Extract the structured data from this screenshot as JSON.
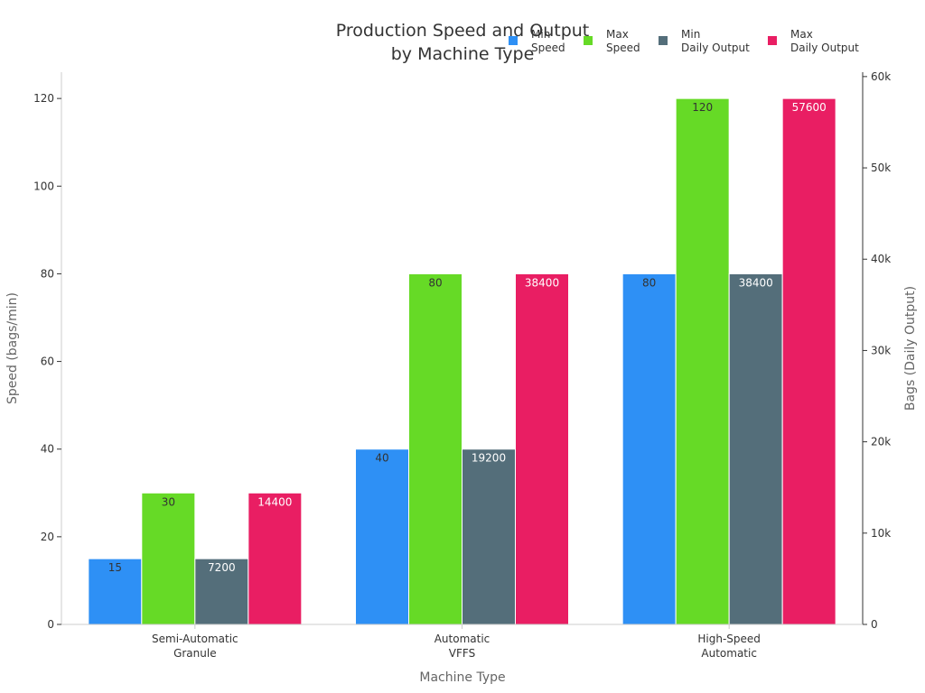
{
  "chart_data": {
    "type": "bar",
    "title": [
      "Production Speed and Output",
      "by Machine Type"
    ],
    "xlabel": "Machine Type",
    "ylabel_left": "Speed (bags/min)",
    "ylabel_right": "Bags (Daily Output)",
    "categories": [
      [
        "Semi-Automatic",
        "Granule"
      ],
      [
        "Automatic",
        "VFFS"
      ],
      [
        "High-Speed",
        "Automatic"
      ]
    ],
    "ylim_left": [
      0,
      126
    ],
    "ylim_right": [
      0,
      60480
    ],
    "left_ticks": [
      0,
      20,
      40,
      60,
      80,
      100,
      120
    ],
    "right_ticks": [
      {
        "value": 0,
        "label": "0"
      },
      {
        "value": 10000,
        "label": "10k"
      },
      {
        "value": 20000,
        "label": "20k"
      },
      {
        "value": 30000,
        "label": "30k"
      },
      {
        "value": 40000,
        "label": "40k"
      },
      {
        "value": 50000,
        "label": "50k"
      },
      {
        "value": 60000,
        "label": "60k"
      }
    ],
    "legend_position": "top-right",
    "grid": false,
    "series": [
      {
        "name": [
          "Min",
          "Speed"
        ],
        "axis": "left",
        "color": "#2E90F5",
        "label_color": "#333333",
        "values": [
          15,
          40,
          80
        ]
      },
      {
        "name": [
          "Max",
          "Speed"
        ],
        "axis": "left",
        "color": "#66DA26",
        "label_color": "#333333",
        "values": [
          30,
          80,
          120
        ]
      },
      {
        "name": [
          "Min",
          "Daily Output"
        ],
        "axis": "right",
        "color": "#546E7A",
        "label_color": "#ffffff",
        "values": [
          7200,
          19200,
          38400
        ]
      },
      {
        "name": [
          "Max",
          "Daily Output"
        ],
        "axis": "right",
        "color": "#E91E63",
        "label_color": "#ffffff",
        "values": [
          14400,
          38400,
          57600
        ]
      }
    ]
  }
}
